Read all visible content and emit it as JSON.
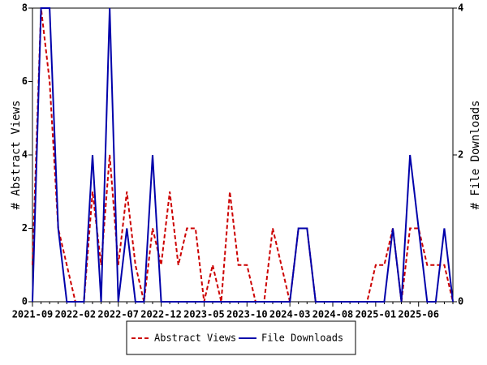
{
  "chart_data": {
    "type": "line",
    "y_label": "# Abstract Views",
    "y2_label": "# File Downloads",
    "categories": [
      "2021-09",
      null,
      null,
      null,
      null,
      "2022-02",
      null,
      null,
      null,
      null,
      "2022-07",
      null,
      null,
      null,
      null,
      "2022-12",
      null,
      null,
      null,
      null,
      "2023-05",
      null,
      null,
      null,
      null,
      "2023-10",
      null,
      null,
      null,
      null,
      "2024-03",
      null,
      null,
      null,
      null,
      "2024-08",
      null,
      null,
      null,
      null,
      "2025-01",
      null,
      null,
      null,
      null,
      "2025-06",
      null,
      null,
      null,
      null
    ],
    "series": [
      {
        "name": "Abstract Views",
        "color": "#cc0000",
        "dash": true,
        "values": [
          1,
          8,
          6,
          2,
          1,
          0,
          0,
          3,
          1,
          4,
          1,
          3,
          1,
          0,
          2,
          1,
          3,
          1,
          2,
          2,
          0,
          1,
          0,
          3,
          1,
          1,
          0,
          0,
          2,
          1,
          0,
          2,
          2,
          0,
          0,
          0,
          0,
          0,
          0,
          0,
          1,
          1,
          2,
          0,
          2,
          2,
          1,
          1,
          1,
          0
        ]
      },
      {
        "name": "File Downloads",
        "color": "#0000aa",
        "axis": "y2",
        "values": [
          0,
          4,
          4,
          1,
          0,
          0,
          0,
          2,
          0,
          4,
          0,
          1,
          0,
          0,
          2,
          0,
          0,
          0,
          0,
          0,
          0,
          0,
          0,
          0,
          0,
          0,
          0,
          0,
          0,
          0,
          0,
          1,
          1,
          0,
          0,
          0,
          0,
          0,
          0,
          0,
          0,
          0,
          1,
          0,
          2,
          1,
          0,
          0,
          1,
          0
        ]
      }
    ],
    "ylim": [
      0,
      8
    ],
    "yticks": [
      0,
      2,
      4,
      6,
      8
    ],
    "y2lim": [
      0,
      4
    ],
    "y2ticks": [
      0,
      2,
      4
    ],
    "legend": "bottom"
  }
}
